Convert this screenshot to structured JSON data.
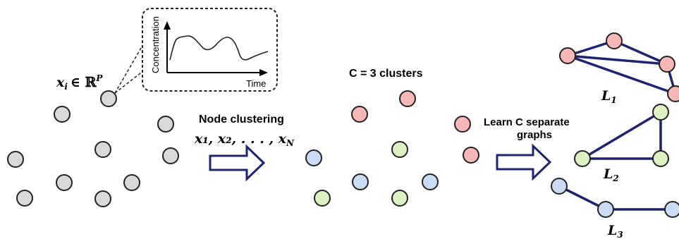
{
  "left_panel": {
    "feature_label": "x",
    "feature_subscript": "i",
    "feature_membership": "∈ ℝ",
    "feature_superscript": "P",
    "inset": {
      "ylabel": "Concentration",
      "xlabel": "Time"
    }
  },
  "arrow1": {
    "label": "Node clustering",
    "formula": "x₁, x₂, . . . , x"
  },
  "arrow1_formula_sub": "N",
  "middle_panel": {
    "title": "C = 3 clusters"
  },
  "arrow2": {
    "label_line1": "Learn C separate",
    "label_line2": "graphs"
  },
  "graphs": [
    {
      "name": "L",
      "sub": "1"
    },
    {
      "name": "L",
      "sub": "2"
    },
    {
      "name": "L",
      "sub": "3"
    }
  ],
  "colors": {
    "gray": "#d9d9d9",
    "red": "#f6b7b7",
    "green": "#ddf0c2",
    "blue": "#c9dcf3",
    "edge": "#1f2470",
    "arrow": "#1f2470"
  }
}
